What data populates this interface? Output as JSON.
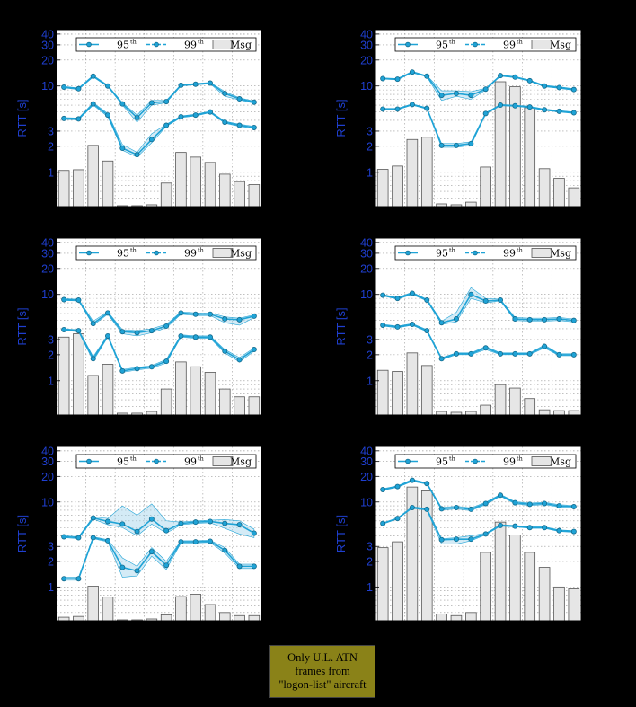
{
  "colors": {
    "line": "#1fa3d6",
    "dark": "#146a8c",
    "band": "#9fd3ea",
    "bar_fill": "#e6e6e6",
    "bar_stroke": "#555555",
    "axis_label": "#1f3fd0"
  },
  "note": {
    "line1": "Only U.L. ATN",
    "line2": "frames from",
    "line3": "\"logon-list\" aircraft"
  },
  "chart_data": [
    {
      "type": "line",
      "ylabel": "RTT [s]",
      "yscale": "log",
      "ylim": [
        0.4,
        45
      ],
      "yticks": [
        "1",
        "2",
        "3",
        "10",
        "20",
        "30",
        "40"
      ],
      "legend": {
        "p95": "95",
        "p99": "99",
        "sup": "th",
        "msg": "Msg"
      },
      "bars": [
        1.05,
        1.07,
        2.05,
        1.35,
        0.41,
        0.41,
        0.42,
        0.75,
        1.7,
        1.5,
        1.3,
        0.95,
        0.78,
        0.72
      ],
      "p99": [
        9.7,
        9.3,
        13,
        10,
        6.2,
        4.3,
        6.4,
        6.6,
        10.2,
        10.5,
        10.8,
        8.2,
        7.1,
        6.5
      ],
      "p99_band": [
        [
          9.5,
          9.9
        ],
        [
          9.1,
          9.5
        ],
        [
          12.7,
          13.3
        ],
        [
          9.8,
          10.2
        ],
        [
          6.0,
          6.4
        ],
        [
          3.8,
          4.6
        ],
        [
          6.0,
          6.8
        ],
        [
          6.4,
          6.8
        ],
        [
          10.0,
          10.4
        ],
        [
          10.3,
          10.7
        ],
        [
          10.6,
          11.0
        ],
        [
          7.6,
          8.6
        ],
        [
          6.9,
          7.3
        ],
        [
          6.3,
          6.7
        ]
      ],
      "p95": [
        4.2,
        4.15,
        6.2,
        4.6,
        1.9,
        1.6,
        2.4,
        3.5,
        4.4,
        4.6,
        5.0,
        3.8,
        3.5,
        3.3
      ],
      "p95_band": [
        [
          4.1,
          4.3
        ],
        [
          4.05,
          4.25
        ],
        [
          6.0,
          6.4
        ],
        [
          4.4,
          4.8
        ],
        [
          1.8,
          2.1
        ],
        [
          1.5,
          1.7
        ],
        [
          2.2,
          2.8
        ],
        [
          3.4,
          3.6
        ],
        [
          4.3,
          4.5
        ],
        [
          4.5,
          4.7
        ],
        [
          4.9,
          5.1
        ],
        [
          3.7,
          3.9
        ],
        [
          3.4,
          3.6
        ],
        [
          3.2,
          3.4
        ]
      ]
    },
    {
      "type": "line",
      "ylabel": "RTT [s]",
      "yscale": "log",
      "ylim": [
        0.4,
        45
      ],
      "yticks": [
        "1",
        "2",
        "3",
        "10",
        "20",
        "30",
        "40"
      ],
      "legend": {
        "p95": "95",
        "p99": "99",
        "sup": "th",
        "msg": "Msg"
      },
      "bars": [
        1.08,
        1.18,
        2.4,
        2.55,
        0.43,
        0.42,
        0.45,
        1.15,
        11.2,
        9.8,
        5.6,
        1.1,
        0.85,
        0.66
      ],
      "p99": [
        12.2,
        12,
        14.5,
        13,
        7.8,
        8.2,
        7.8,
        9.2,
        13.2,
        12.7,
        11.5,
        10,
        9.6,
        9.1
      ],
      "p99_band": [
        [
          12.0,
          12.4
        ],
        [
          11.8,
          12.2
        ],
        [
          14.2,
          14.8
        ],
        [
          12.8,
          13.2
        ],
        [
          6.8,
          8.8
        ],
        [
          7.6,
          8.8
        ],
        [
          7.0,
          8.6
        ],
        [
          9.0,
          9.4
        ],
        [
          13.0,
          13.4
        ],
        [
          12.5,
          12.9
        ],
        [
          11.3,
          11.7
        ],
        [
          9.8,
          10.2
        ],
        [
          9.4,
          9.8
        ],
        [
          8.9,
          9.3
        ]
      ],
      "p95": [
        5.4,
        5.4,
        6.1,
        5.5,
        2.05,
        2.05,
        2.15,
        4.8,
        6.0,
        5.9,
        5.7,
        5.3,
        5.1,
        4.9
      ],
      "p95_band": [
        [
          5.3,
          5.5
        ],
        [
          5.3,
          5.5
        ],
        [
          6.0,
          6.2
        ],
        [
          5.4,
          5.6
        ],
        [
          1.95,
          2.15
        ],
        [
          1.95,
          2.15
        ],
        [
          2.05,
          2.25
        ],
        [
          4.7,
          4.9
        ],
        [
          5.9,
          6.1
        ],
        [
          5.8,
          6.0
        ],
        [
          5.6,
          5.8
        ],
        [
          5.2,
          5.4
        ],
        [
          5.0,
          5.2
        ],
        [
          4.8,
          5.0
        ]
      ]
    },
    {
      "type": "line",
      "ylabel": "RTT [s]",
      "yscale": "log",
      "ylim": [
        0.4,
        45
      ],
      "yticks": [
        "1",
        "2",
        "3",
        "10",
        "20",
        "30",
        "40"
      ],
      "legend": {
        "p95": "95",
        "p99": "99",
        "sup": "th",
        "msg": "Msg"
      },
      "bars": [
        3.2,
        3.5,
        1.15,
        1.55,
        0.42,
        0.42,
        0.44,
        0.8,
        1.65,
        1.45,
        1.25,
        0.8,
        0.65,
        0.65
      ],
      "p99": [
        8.7,
        8.6,
        4.6,
        6.1,
        3.7,
        3.6,
        3.8,
        4.3,
        6.1,
        5.9,
        5.9,
        5.2,
        5.1,
        5.6
      ],
      "p99_band": [
        [
          8.5,
          8.9
        ],
        [
          8.4,
          8.8
        ],
        [
          4.4,
          4.9
        ],
        [
          5.9,
          6.3
        ],
        [
          3.5,
          3.9
        ],
        [
          3.3,
          3.8
        ],
        [
          3.6,
          4.0
        ],
        [
          4.1,
          4.5
        ],
        [
          5.9,
          6.3
        ],
        [
          5.7,
          6.1
        ],
        [
          5.7,
          6.1
        ],
        [
          4.7,
          5.5
        ],
        [
          4.4,
          5.3
        ],
        [
          5.4,
          5.8
        ]
      ],
      "p95": [
        3.9,
        3.8,
        1.8,
        3.3,
        1.3,
        1.38,
        1.45,
        1.68,
        3.3,
        3.2,
        3.2,
        2.2,
        1.75,
        2.3
      ],
      "p95_band": [
        [
          3.8,
          4.0
        ],
        [
          3.7,
          3.9
        ],
        [
          1.7,
          1.9
        ],
        [
          3.2,
          3.4
        ],
        [
          1.25,
          1.35
        ],
        [
          1.33,
          1.43
        ],
        [
          1.4,
          1.5
        ],
        [
          1.6,
          1.76
        ],
        [
          3.2,
          3.4
        ],
        [
          3.1,
          3.3
        ],
        [
          3.1,
          3.3
        ],
        [
          2.1,
          2.3
        ],
        [
          1.65,
          1.85
        ],
        [
          2.2,
          2.4
        ]
      ]
    },
    {
      "type": "line",
      "ylabel": "RTT [s]",
      "yscale": "log",
      "ylim": [
        0.4,
        45
      ],
      "yticks": [
        "1",
        "2",
        "3",
        "10",
        "20",
        "30",
        "40"
      ],
      "legend": {
        "p95": "95",
        "p99": "99",
        "sup": "th",
        "msg": "Msg"
      },
      "bars": [
        1.32,
        1.28,
        2.1,
        1.5,
        0.44,
        0.43,
        0.44,
        0.52,
        0.9,
        0.82,
        0.62,
        0.46,
        0.45,
        0.45
      ],
      "p99": [
        9.8,
        9.0,
        10.3,
        8.6,
        4.7,
        5.2,
        10.0,
        8.4,
        8.6,
        5.2,
        5.1,
        5.1,
        5.2,
        5.0
      ],
      "p99_band": [
        [
          9.6,
          10.0
        ],
        [
          8.8,
          9.2
        ],
        [
          10.0,
          10.6
        ],
        [
          8.4,
          8.8
        ],
        [
          4.5,
          4.9
        ],
        [
          4.8,
          6.2
        ],
        [
          9.0,
          12.0
        ],
        [
          8.0,
          9.0
        ],
        [
          8.4,
          8.8
        ],
        [
          5.0,
          5.4
        ],
        [
          4.9,
          5.3
        ],
        [
          4.9,
          5.3
        ],
        [
          5.0,
          5.4
        ],
        [
          4.8,
          5.2
        ]
      ],
      "p95": [
        4.4,
        4.2,
        4.5,
        3.8,
        1.8,
        2.05,
        2.05,
        2.4,
        2.05,
        2.05,
        2.05,
        2.5,
        2.0,
        2.0
      ],
      "p95_band": [
        [
          4.3,
          4.5
        ],
        [
          4.1,
          4.3
        ],
        [
          4.4,
          4.6
        ],
        [
          3.7,
          3.9
        ],
        [
          1.75,
          1.85
        ],
        [
          2.0,
          2.1
        ],
        [
          2.0,
          2.1
        ],
        [
          2.3,
          2.5
        ],
        [
          2.0,
          2.1
        ],
        [
          2.0,
          2.1
        ],
        [
          2.0,
          2.1
        ],
        [
          2.4,
          2.6
        ],
        [
          1.95,
          2.05
        ],
        [
          1.95,
          2.05
        ]
      ]
    },
    {
      "type": "line",
      "ylabel": "RTT [s]",
      "yscale": "log",
      "ylim": [
        0.4,
        45
      ],
      "yticks": [
        "1",
        "2",
        "3",
        "10",
        "20",
        "30",
        "40"
      ],
      "legend": {
        "p95": "95",
        "p99": "99",
        "sup": "th",
        "msg": "Msg"
      },
      "bars": [
        0.44,
        0.45,
        1.02,
        0.76,
        0.41,
        0.41,
        0.42,
        0.47,
        0.77,
        0.82,
        0.62,
        0.5,
        0.46,
        0.46
      ],
      "p99": [
        3.9,
        3.8,
        6.5,
        5.9,
        5.5,
        4.5,
        6.3,
        4.6,
        5.6,
        5.8,
        5.9,
        5.6,
        5.4,
        4.3
      ],
      "p99_band": [
        [
          3.8,
          4.0
        ],
        [
          3.7,
          3.9
        ],
        [
          6.3,
          6.7
        ],
        [
          5.4,
          6.4
        ],
        [
          5.0,
          9.0
        ],
        [
          4.0,
          7.0
        ],
        [
          5.5,
          9.5
        ],
        [
          4.3,
          6.0
        ],
        [
          5.4,
          5.8
        ],
        [
          5.6,
          6.0
        ],
        [
          5.7,
          6.1
        ],
        [
          4.9,
          6.2
        ],
        [
          4.2,
          6.0
        ],
        [
          3.8,
          4.8
        ]
      ],
      "p95": [
        1.25,
        1.25,
        3.8,
        3.5,
        1.7,
        1.55,
        2.6,
        1.8,
        3.4,
        3.4,
        3.45,
        2.7,
        1.75,
        1.75
      ],
      "p95_band": [
        [
          1.2,
          1.3
        ],
        [
          1.2,
          1.3
        ],
        [
          3.7,
          3.9
        ],
        [
          3.4,
          3.6
        ],
        [
          1.3,
          2.2
        ],
        [
          1.35,
          1.75
        ],
        [
          2.3,
          2.9
        ],
        [
          1.6,
          2.0
        ],
        [
          3.3,
          3.5
        ],
        [
          3.3,
          3.5
        ],
        [
          3.35,
          3.55
        ],
        [
          2.5,
          2.9
        ],
        [
          1.65,
          1.85
        ],
        [
          1.65,
          1.85
        ]
      ]
    },
    {
      "type": "line",
      "ylabel": "RTT [s]",
      "yscale": "log",
      "ylim": [
        0.4,
        45
      ],
      "yticks": [
        "1",
        "2",
        "3",
        "10",
        "20",
        "30",
        "40"
      ],
      "legend": {
        "p95": "95",
        "p99": "99",
        "sup": "th",
        "msg": "Msg"
      },
      "bars": [
        2.9,
        3.4,
        15,
        13.5,
        0.48,
        0.46,
        0.5,
        2.55,
        5.8,
        4.1,
        2.55,
        1.7,
        1.0,
        0.95
      ],
      "p99": [
        14,
        15.2,
        18,
        16.5,
        8.3,
        8.6,
        8.2,
        9.6,
        12,
        9.8,
        9.4,
        9.6,
        9.0,
        8.8
      ],
      "p99_band": [
        [
          13.7,
          14.3
        ],
        [
          14.9,
          15.5
        ],
        [
          17.5,
          18.5
        ],
        [
          16.2,
          16.8
        ],
        [
          8.0,
          8.6
        ],
        [
          8.3,
          8.9
        ],
        [
          7.9,
          8.5
        ],
        [
          9.3,
          9.9
        ],
        [
          11.7,
          12.3
        ],
        [
          9.5,
          10.1
        ],
        [
          9.1,
          9.7
        ],
        [
          9.3,
          9.9
        ],
        [
          8.7,
          9.3
        ],
        [
          8.5,
          9.1
        ]
      ],
      "p95": [
        5.6,
        6.4,
        8.6,
        8.2,
        3.6,
        3.65,
        3.65,
        4.2,
        5.3,
        5.2,
        5.0,
        5.0,
        4.6,
        4.5
      ],
      "p95_band": [
        [
          5.5,
          5.7
        ],
        [
          6.3,
          6.5
        ],
        [
          8.4,
          8.8
        ],
        [
          8.0,
          8.4
        ],
        [
          3.2,
          3.7
        ],
        [
          3.2,
          3.8
        ],
        [
          3.5,
          4.0
        ],
        [
          4.1,
          4.3
        ],
        [
          5.2,
          5.4
        ],
        [
          5.1,
          5.3
        ],
        [
          4.9,
          5.1
        ],
        [
          4.9,
          5.1
        ],
        [
          4.5,
          4.7
        ],
        [
          4.4,
          4.6
        ]
      ]
    }
  ]
}
